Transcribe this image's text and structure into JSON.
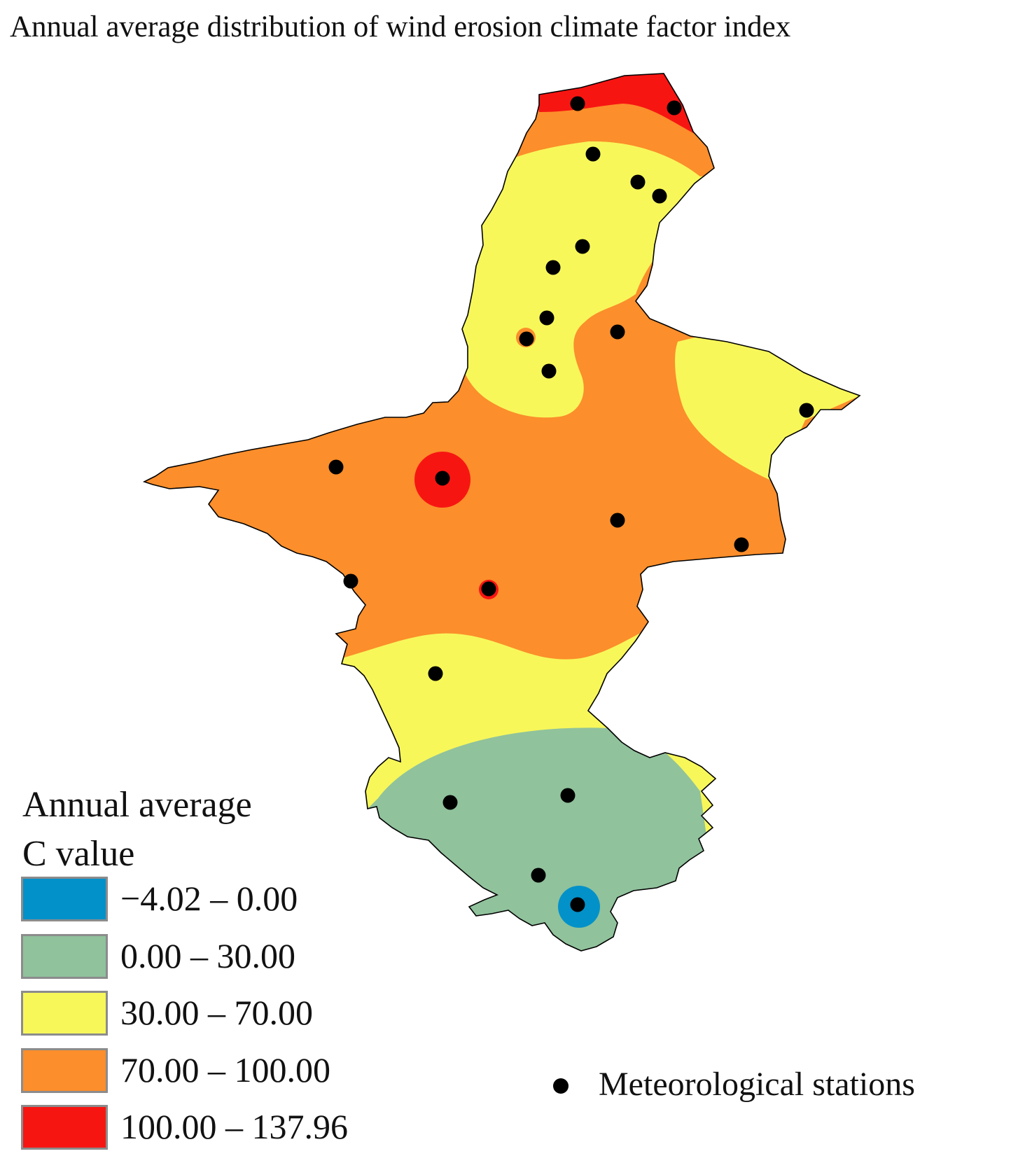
{
  "title": "Annual average distribution of wind erosion climate factor index",
  "legend": {
    "title_lines": [
      "Annual average",
      "C value"
    ],
    "classes": [
      {
        "label": "−4.02 – 0.00",
        "min": -4.02,
        "max": 0.0,
        "color": "#0391c9"
      },
      {
        "label": "0.00 – 30.00",
        "min": 0.0,
        "max": 30.0,
        "color": "#90c29c"
      },
      {
        "label": "30.00 – 70.00",
        "min": 30.0,
        "max": 70.0,
        "color": "#f7f75a"
      },
      {
        "label": "70.00 – 100.00",
        "min": 70.0,
        "max": 100.0,
        "color": "#fc8e2b"
      },
      {
        "label": "100.00 – 137.96",
        "min": 100.0,
        "max": 137.96,
        "color": "#f71512"
      }
    ]
  },
  "stations_legend": {
    "label": "Meteorological stations",
    "icon": "filled-black-dot"
  },
  "colors": {
    "boundary": "#000000",
    "station": "#000000"
  }
}
